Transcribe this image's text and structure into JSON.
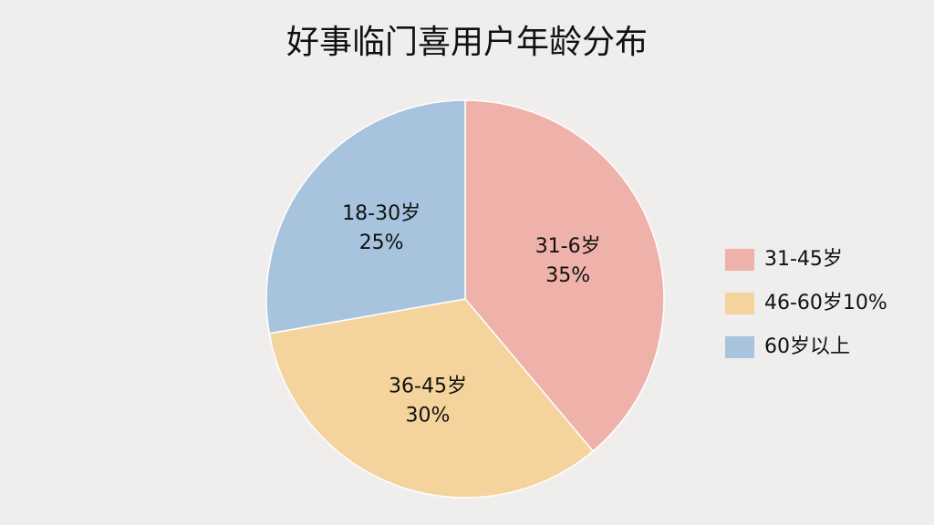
{
  "chart_data": {
    "type": "pie",
    "title": "好事临门喜用户年龄分布",
    "categories": [
      "31-6岁",
      "36-45岁",
      "18-30岁"
    ],
    "values": [
      35,
      30,
      25
    ],
    "value_labels": [
      "35%",
      "30%",
      "25%"
    ],
    "colors": [
      "#efb2aa",
      "#f5d39c",
      "#a7c3de"
    ],
    "legend": [
      {
        "name": "31-45岁",
        "color": "#efb2aa"
      },
      {
        "name": "46-60岁10%",
        "color": "#f5d39c"
      },
      {
        "name": "60岁以上",
        "color": "#a7c3de"
      }
    ]
  }
}
